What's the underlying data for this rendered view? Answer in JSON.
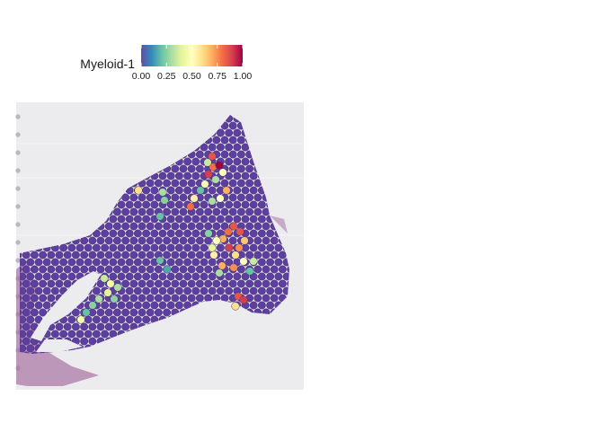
{
  "chart_data": {
    "type": "scatter",
    "title": "",
    "legend": {
      "title": "Myeloid-1",
      "placement": "top",
      "ticks": [
        "0.00",
        "0.25",
        "0.50",
        "0.75",
        "1.00"
      ],
      "range": [
        0,
        1
      ],
      "colormap": [
        "#5e4fa2",
        "#3288bd",
        "#66c2a5",
        "#abdda4",
        "#e6f598",
        "#ffffbf",
        "#fee08b",
        "#fdae61",
        "#f46d43",
        "#d53e4f",
        "#9e0142"
      ]
    },
    "background_spot_color": "#5e3fa0",
    "grid": false,
    "series": [
      {
        "name": "",
        "points": [
          {
            "x": 237,
            "y": 186,
            "v": 0.8
          },
          {
            "x": 244,
            "y": 184,
            "v": 1.0
          },
          {
            "x": 232,
            "y": 194,
            "v": 0.9
          },
          {
            "x": 248,
            "y": 192,
            "v": 0.5
          },
          {
            "x": 240,
            "y": 200,
            "v": 0.3
          },
          {
            "x": 236,
            "y": 174,
            "v": 0.85
          },
          {
            "x": 231,
            "y": 181,
            "v": 0.35
          },
          {
            "x": 252,
            "y": 212,
            "v": 0.7
          },
          {
            "x": 245,
            "y": 221,
            "v": 0.5
          },
          {
            "x": 228,
            "y": 205,
            "v": 0.45
          },
          {
            "x": 223,
            "y": 212,
            "v": 0.2
          },
          {
            "x": 216,
            "y": 221,
            "v": 0.55
          },
          {
            "x": 212,
            "y": 230,
            "v": 0.8
          },
          {
            "x": 236,
            "y": 224,
            "v": 0.3
          },
          {
            "x": 181,
            "y": 214,
            "v": 0.3
          },
          {
            "x": 183,
            "y": 223,
            "v": 0.25
          },
          {
            "x": 154,
            "y": 212,
            "v": 0.6
          },
          {
            "x": 178,
            "y": 241,
            "v": 0.2
          },
          {
            "x": 260,
            "y": 252,
            "v": 0.85
          },
          {
            "x": 267,
            "y": 258,
            "v": 0.85
          },
          {
            "x": 254,
            "y": 258,
            "v": 0.8
          },
          {
            "x": 248,
            "y": 266,
            "v": 0.7
          },
          {
            "x": 241,
            "y": 268,
            "v": 0.5
          },
          {
            "x": 232,
            "y": 260,
            "v": 0.25
          },
          {
            "x": 272,
            "y": 268,
            "v": 0.65
          },
          {
            "x": 266,
            "y": 276,
            "v": 0.75
          },
          {
            "x": 255,
            "y": 276,
            "v": 0.9
          },
          {
            "x": 262,
            "y": 284,
            "v": 0.6
          },
          {
            "x": 271,
            "y": 291,
            "v": 0.5
          },
          {
            "x": 260,
            "y": 298,
            "v": 0.75
          },
          {
            "x": 247,
            "y": 296,
            "v": 0.7
          },
          {
            "x": 238,
            "y": 284,
            "v": 0.55
          },
          {
            "x": 244,
            "y": 304,
            "v": 0.3
          },
          {
            "x": 236,
            "y": 276,
            "v": 0.4
          },
          {
            "x": 282,
            "y": 291,
            "v": 0.35
          },
          {
            "x": 278,
            "y": 302,
            "v": 0.2
          },
          {
            "x": 265,
            "y": 330,
            "v": 0.85
          },
          {
            "x": 271,
            "y": 334,
            "v": 0.9
          },
          {
            "x": 262,
            "y": 341,
            "v": 0.6
          },
          {
            "x": 116,
            "y": 310,
            "v": 0.35
          },
          {
            "x": 123,
            "y": 316,
            "v": 0.45
          },
          {
            "x": 131,
            "y": 320,
            "v": 0.3
          },
          {
            "x": 120,
            "y": 326,
            "v": 0.4
          },
          {
            "x": 110,
            "y": 333,
            "v": 0.3
          },
          {
            "x": 103,
            "y": 340,
            "v": 0.25
          },
          {
            "x": 96,
            "y": 348,
            "v": 0.2
          },
          {
            "x": 90,
            "y": 356,
            "v": 0.45
          },
          {
            "x": 127,
            "y": 333,
            "v": 0.25
          },
          {
            "x": 178,
            "y": 290,
            "v": 0.2
          },
          {
            "x": 186,
            "y": 300,
            "v": 0.15
          }
        ]
      }
    ]
  }
}
